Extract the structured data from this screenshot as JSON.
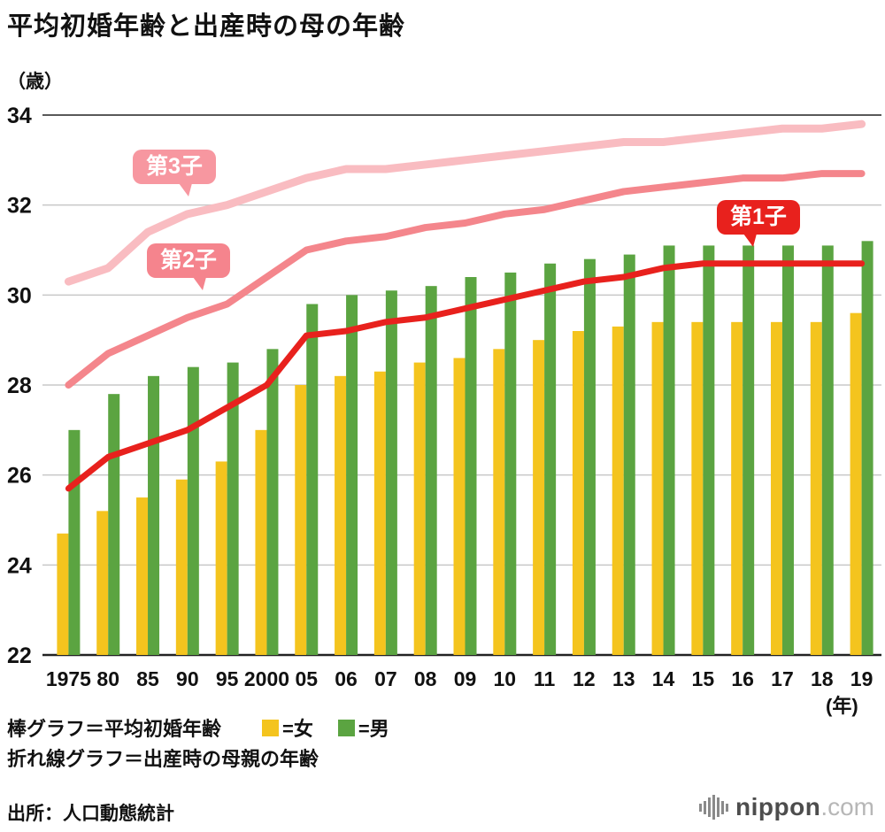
{
  "title": "平均初婚年齢と出産時の母の年齢",
  "y_axis_unit": "（歳）",
  "x_axis_unit": "(年)",
  "annotations": {
    "first_child": "第1子",
    "second_child": "第2子",
    "third_child": "第3子"
  },
  "legend": {
    "bar_label": "棒グラフ＝平均初婚年齢",
    "female_label": "=女",
    "male_label": "=男",
    "line_label": "折れ線グラフ＝出産時の母親の年齢"
  },
  "source": "出所：人口動態統計",
  "logo": {
    "brand": "nippon",
    "suffix": ".com"
  },
  "colors": {
    "female_bar": "#F4C41E",
    "male_bar": "#5BA441",
    "first_child_line": "#E8211D",
    "second_child_line": "#F4868C",
    "third_child_line": "#F9BCC1",
    "bubble_first": "#E8211D",
    "bubble_second": "#F5848D",
    "bubble_third": "#F797A0",
    "grid": "#C8C8C8",
    "axis": "#222222"
  },
  "chart_data": {
    "type": "bar+line",
    "title": "平均初婚年齢と出産時の母の年齢",
    "ylabel": "（歳）",
    "xlabel": "(年)",
    "ylim": [
      22,
      34
    ],
    "yticks": [
      22,
      24,
      26,
      28,
      30,
      32,
      34
    ],
    "grid": true,
    "categories": [
      "1975",
      "80",
      "85",
      "90",
      "95",
      "2000",
      "05",
      "06",
      "07",
      "08",
      "09",
      "10",
      "11",
      "12",
      "13",
      "14",
      "15",
      "16",
      "17",
      "18",
      "19"
    ],
    "series": [
      {
        "name": "女（平均初婚年齢）",
        "type": "bar",
        "color_key": "female_bar",
        "values": [
          24.7,
          25.2,
          25.5,
          25.9,
          26.3,
          27.0,
          28.0,
          28.2,
          28.3,
          28.5,
          28.6,
          28.8,
          29.0,
          29.2,
          29.3,
          29.4,
          29.4,
          29.4,
          29.4,
          29.4,
          29.6
        ]
      },
      {
        "name": "男（平均初婚年齢）",
        "type": "bar",
        "color_key": "male_bar",
        "values": [
          27.0,
          27.8,
          28.2,
          28.4,
          28.5,
          28.8,
          29.8,
          30.0,
          30.1,
          30.2,
          30.4,
          30.5,
          30.7,
          30.8,
          30.9,
          31.1,
          31.1,
          31.1,
          31.1,
          31.1,
          31.2
        ]
      },
      {
        "name": "第1子出産時の母親の年齢",
        "type": "line",
        "color_key": "first_child_line",
        "values": [
          25.7,
          26.4,
          26.7,
          27.0,
          27.5,
          28.0,
          29.1,
          29.2,
          29.4,
          29.5,
          29.7,
          29.9,
          30.1,
          30.3,
          30.4,
          30.6,
          30.7,
          30.7,
          30.7,
          30.7,
          30.7
        ]
      },
      {
        "name": "第2子出産時の母親の年齢",
        "type": "line",
        "color_key": "second_child_line",
        "values": [
          28.0,
          28.7,
          29.1,
          29.5,
          29.8,
          30.4,
          31.0,
          31.2,
          31.3,
          31.5,
          31.6,
          31.8,
          31.9,
          32.1,
          32.3,
          32.4,
          32.5,
          32.6,
          32.6,
          32.7,
          32.7
        ]
      },
      {
        "name": "第3子出産時の母親の年齢",
        "type": "line",
        "color_key": "third_child_line",
        "values": [
          30.3,
          30.6,
          31.4,
          31.8,
          32.0,
          32.3,
          32.6,
          32.8,
          32.8,
          32.9,
          33.0,
          33.1,
          33.2,
          33.3,
          33.4,
          33.4,
          33.5,
          33.6,
          33.7,
          33.7,
          33.8
        ]
      }
    ]
  }
}
